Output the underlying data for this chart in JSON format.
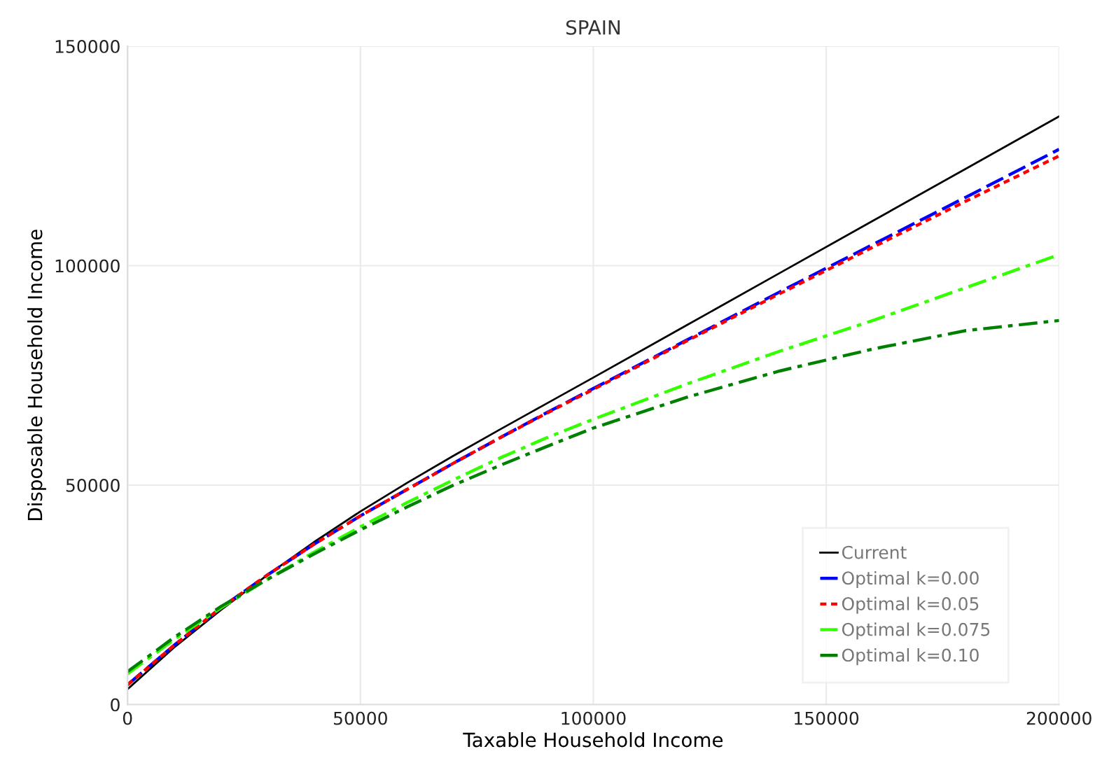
{
  "chart_data": {
    "type": "line",
    "title": "SPAIN",
    "xlabel": "Taxable Household Income",
    "ylabel": "Disposable Household Income",
    "x": [
      0,
      10000,
      20000,
      30000,
      40000,
      50000,
      60000,
      70000,
      80000,
      90000,
      100000,
      120000,
      140000,
      160000,
      180000,
      200000
    ],
    "series": [
      {
        "name": "Current",
        "color": "#000000",
        "line_style": "solid",
        "values": [
          3500,
          13000,
          21500,
          29500,
          37000,
          44000,
          50500,
          56700,
          62700,
          68600,
          74500,
          86400,
          98300,
          110200,
          122100,
          134000
        ]
      },
      {
        "name": "Optimal k=0.00",
        "color": "#0000ff",
        "line_style": "dashed",
        "values": [
          4500,
          13500,
          22000,
          29500,
          36500,
          43000,
          49000,
          55000,
          60800,
          66500,
          72000,
          83000,
          94000,
          104800,
          115600,
          126500
        ]
      },
      {
        "name": "Optimal k=0.05",
        "color": "#ff0000",
        "line_style": "dotted",
        "values": [
          4500,
          13500,
          22000,
          29500,
          36500,
          43000,
          49000,
          55000,
          60800,
          66400,
          71800,
          82800,
          93600,
          104200,
          114700,
          125000
        ]
      },
      {
        "name": "Optimal k=0.075",
        "color": "#33ff00",
        "line_style": "dashdot",
        "values": [
          7000,
          14800,
          22000,
          28500,
          34700,
          40500,
          46000,
          51200,
          56200,
          60800,
          65000,
          73000,
          80500,
          87500,
          95000,
          102500
        ]
      },
      {
        "name": "Optimal k=0.10",
        "color": "#008000",
        "line_style": "dashdot",
        "values": [
          7500,
          15300,
          22300,
          28500,
          34300,
          39800,
          45000,
          50000,
          54500,
          58800,
          63000,
          70000,
          76000,
          81000,
          85200,
          87500
        ]
      }
    ],
    "xlim": [
      0,
      200000
    ],
    "xticks": [
      0,
      50000,
      100000,
      150000,
      200000
    ],
    "ylim": [
      0,
      150000
    ],
    "yticks": [
      0,
      50000,
      100000,
      150000
    ],
    "grid": true,
    "legend": "bottom right",
    "marker": "none"
  }
}
